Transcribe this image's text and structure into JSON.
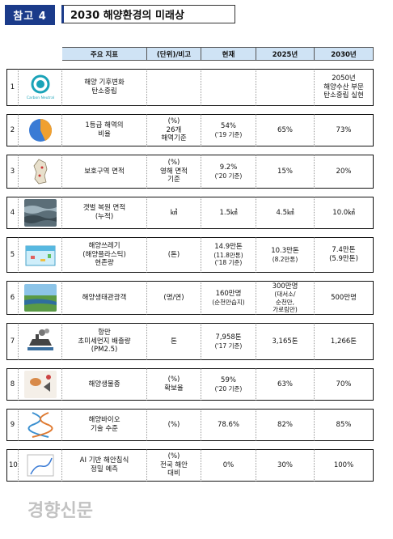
{
  "header": {
    "badge": "참고 4",
    "title": "2030 해양환경의 미래상"
  },
  "columns": [
    "주요 지표",
    "(단위)/비고",
    "현재",
    "2025년",
    "2030년"
  ],
  "rows": [
    {
      "no": "1",
      "icon": "carbon-neutral-icon",
      "icon_caption": "Carbon Neutral",
      "indicator": [
        "해양 기후변화",
        "탄소중립"
      ],
      "unit": [],
      "current": [],
      "y2025": [],
      "y2030": [
        "2050년",
        "해양수산 부문",
        "탄소중립 실현"
      ]
    },
    {
      "no": "2",
      "icon": "pie-chart-icon",
      "indicator": [
        "1등급 해역의",
        "비율"
      ],
      "unit": [
        "(%)",
        "26개",
        "해역기준"
      ],
      "current": [
        "54%",
        "('19 기준)"
      ],
      "y2025": [
        "65%"
      ],
      "y2030": [
        "73%"
      ]
    },
    {
      "no": "3",
      "icon": "korea-map-icon",
      "indicator": [
        "보호구역 면적"
      ],
      "unit": [
        "(%)",
        "영해 면적",
        "기준"
      ],
      "current": [
        "9.2%",
        "('20 기준)"
      ],
      "y2025": [
        "15%"
      ],
      "y2030": [
        "20%"
      ]
    },
    {
      "no": "4",
      "icon": "tidal-flat-icon",
      "indicator": [
        "갯벌 복원 면적",
        "(누적)"
      ],
      "unit": [
        "㎢"
      ],
      "current": [
        "1.5㎢"
      ],
      "y2025": [
        "4.5㎢"
      ],
      "y2030": [
        "10.0㎢"
      ]
    },
    {
      "no": "5",
      "icon": "marine-debris-icon",
      "indicator": [
        "해양쓰레기",
        "(해양플라스틱)",
        "현존량"
      ],
      "unit": [
        "(톤)"
      ],
      "current": [
        "14.9만톤",
        "(11.8만톤)",
        "('18 기준)"
      ],
      "y2025": [
        "10.3만톤",
        "(8.2만톤)"
      ],
      "y2030": [
        "7.4만톤",
        "(5.9만톤)"
      ]
    },
    {
      "no": "6",
      "icon": "wetland-landscape-icon",
      "indicator": [
        "해양생태관광객"
      ],
      "unit": [
        "(명/연)"
      ],
      "current": [
        "160만명",
        "(순천만습지)"
      ],
      "y2025": [
        "300만명",
        "(대서소/",
        "순천만,",
        "가로림만)"
      ],
      "y2030": [
        "500만명"
      ]
    },
    {
      "no": "7",
      "icon": "port-emission-icon",
      "indicator": [
        "항만",
        "초미세먼지 배출량",
        "(PM2.5)"
      ],
      "unit": [
        "톤"
      ],
      "current": [
        "7,958톤",
        "('17 기준)"
      ],
      "y2025": [
        "3,165톤"
      ],
      "y2030": [
        "1,266톤"
      ]
    },
    {
      "no": "8",
      "icon": "marine-species-icon",
      "indicator": [
        "해양생물종"
      ],
      "unit": [
        "(%)",
        "확보율"
      ],
      "current": [
        "59%",
        "('20 기준)"
      ],
      "y2025": [
        "63%"
      ],
      "y2030": [
        "70%"
      ]
    },
    {
      "no": "9",
      "icon": "dna-helix-icon",
      "indicator": [
        "해양바이오",
        "기술 수준"
      ],
      "unit": [
        "(%)"
      ],
      "current": [
        "78.6%"
      ],
      "y2025": [
        "82%"
      ],
      "y2030": [
        "85%"
      ]
    },
    {
      "no": "10",
      "icon": "coastal-map-icon",
      "indicator": [
        "AI 기반 해안침식",
        "정밀 예측"
      ],
      "unit": [
        "(%)",
        "전국 해안",
        "대비"
      ],
      "current": [
        "0%"
      ],
      "y2025": [
        "30%"
      ],
      "y2030": [
        "100%"
      ]
    }
  ],
  "watermark": "경향신문"
}
